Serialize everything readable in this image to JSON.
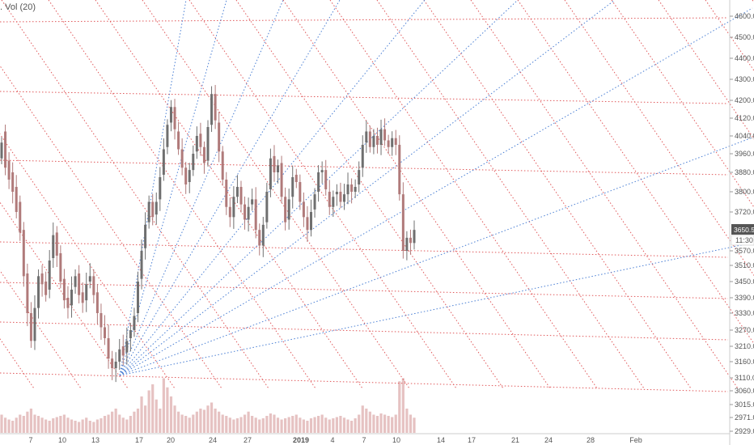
{
  "header": {
    "indicator_label": ". Vol (20)"
  },
  "colors": {
    "red_lines": "#e0585a",
    "blue_lines": "#4a7fd4",
    "candle_up": "#6f6f6f",
    "candle_down": "#b07a7a",
    "volume": "#e6c2c2",
    "axis_text": "#555555",
    "badge_bg": "#555555",
    "badge_fg": "#ffffff"
  },
  "chart_data": {
    "type": "candlestick",
    "title": "",
    "xlabel": "",
    "ylabel": "",
    "ylim": [
      2929,
      4650
    ],
    "y_ticks": [
      "4600.0",
      "4500.0",
      "4400.0",
      "4300.0",
      "4200.0",
      "4120.0",
      "4040.0",
      "3960.0",
      "3880.0",
      "3800.0",
      "3720.0",
      "3650.5",
      "3570.0",
      "3510.0",
      "3450.0",
      "3390.0",
      "3330.0",
      "3270.0",
      "3210.0",
      "3160.0",
      "3110.0",
      "3060.0",
      "3015.0",
      "2971.0",
      "2929.0"
    ],
    "x_ticks": [
      "7",
      "10",
      "13",
      "17",
      "20",
      "24",
      "27",
      "2019",
      "4",
      "7",
      "10",
      "14",
      "17",
      "21",
      "24",
      "28",
      "Feb"
    ],
    "last_price": "3650.5",
    "countdown": "11:30",
    "price_path": [
      [
        3940,
        4010
      ],
      [
        4060,
        3900
      ],
      [
        3930,
        3850
      ],
      [
        3880,
        3800
      ],
      [
        3820,
        3720
      ],
      [
        3760,
        3640
      ],
      [
        3650,
        3470
      ],
      [
        3480,
        3330
      ],
      [
        3330,
        3230
      ],
      [
        3230,
        3350
      ],
      [
        3350,
        3470
      ],
      [
        3480,
        3440
      ],
      [
        3450,
        3400
      ],
      [
        3420,
        3530
      ],
      [
        3540,
        3630
      ],
      [
        3640,
        3550
      ],
      [
        3560,
        3450
      ],
      [
        3460,
        3380
      ],
      [
        3390,
        3350
      ],
      [
        3360,
        3420
      ],
      [
        3430,
        3470
      ],
      [
        3480,
        3400
      ],
      [
        3410,
        3370
      ],
      [
        3380,
        3440
      ],
      [
        3450,
        3470
      ],
      [
        3470,
        3400
      ],
      [
        3410,
        3330
      ],
      [
        3330,
        3280
      ],
      [
        3280,
        3240
      ],
      [
        3240,
        3170
      ],
      [
        3170,
        3140
      ],
      [
        3140,
        3160
      ],
      [
        3160,
        3200
      ],
      [
        3210,
        3180
      ],
      [
        3190,
        3230
      ],
      [
        3240,
        3270
      ],
      [
        3270,
        3320
      ],
      [
        3330,
        3450
      ],
      [
        3460,
        3570
      ],
      [
        3580,
        3670
      ],
      [
        3680,
        3760
      ],
      [
        3760,
        3700
      ],
      [
        3710,
        3760
      ],
      [
        3770,
        3860
      ],
      [
        3870,
        3980
      ],
      [
        3990,
        4090
      ],
      [
        4100,
        4170
      ],
      [
        4170,
        4070
      ],
      [
        4060,
        3980
      ],
      [
        3980,
        3900
      ],
      [
        3900,
        3830
      ],
      [
        3840,
        3890
      ],
      [
        3890,
        3960
      ],
      [
        3970,
        4040
      ],
      [
        4050,
        3990
      ],
      [
        3990,
        3920
      ],
      [
        3930,
        4080
      ],
      [
        4090,
        4230
      ],
      [
        4230,
        4110
      ],
      [
        4100,
        3970
      ],
      [
        3970,
        3850
      ],
      [
        3850,
        3740
      ],
      [
        3740,
        3700
      ],
      [
        3700,
        3780
      ],
      [
        3780,
        3820
      ],
      [
        3820,
        3750
      ],
      [
        3750,
        3690
      ],
      [
        3690,
        3740
      ],
      [
        3750,
        3770
      ],
      [
        3770,
        3650
      ],
      [
        3650,
        3590
      ],
      [
        3590,
        3670
      ],
      [
        3680,
        3800
      ],
      [
        3810,
        3940
      ],
      [
        3950,
        3880
      ],
      [
        3880,
        3910
      ],
      [
        3920,
        3780
      ],
      [
        3780,
        3680
      ],
      [
        3690,
        3770
      ],
      [
        3780,
        3860
      ],
      [
        3870,
        3840
      ],
      [
        3840,
        3760
      ],
      [
        3760,
        3700
      ],
      [
        3700,
        3650
      ],
      [
        3650,
        3720
      ],
      [
        3730,
        3790
      ],
      [
        3800,
        3880
      ],
      [
        3880,
        3890
      ],
      [
        3890,
        3810
      ],
      [
        3800,
        3740
      ],
      [
        3740,
        3780
      ],
      [
        3790,
        3800
      ],
      [
        3800,
        3760
      ],
      [
        3760,
        3790
      ],
      [
        3790,
        3830
      ],
      [
        3830,
        3800
      ],
      [
        3800,
        3820
      ],
      [
        3830,
        3890
      ],
      [
        3900,
        4000
      ],
      [
        4010,
        4060
      ],
      [
        4060,
        3990
      ],
      [
        3990,
        4040
      ],
      [
        4040,
        4000
      ],
      [
        4000,
        4070
      ],
      [
        4070,
        4020
      ],
      [
        4020,
        3990
      ],
      [
        3990,
        4030
      ],
      [
        4030,
        4000
      ],
      [
        4000,
        3790
      ],
      [
        3790,
        3570
      ],
      [
        3570,
        3620
      ],
      [
        3620,
        3600
      ],
      [
        3600,
        3650
      ]
    ],
    "volume": [
      30,
      25,
      22,
      20,
      25,
      30,
      28,
      35,
      40,
      30,
      28,
      25,
      22,
      20,
      24,
      26,
      28,
      30,
      25,
      22,
      20,
      18,
      22,
      25,
      20,
      18,
      22,
      24,
      28,
      30,
      35,
      40,
      30,
      25,
      22,
      28,
      35,
      40,
      60,
      45,
      70,
      80,
      55,
      40,
      90,
      75,
      60,
      45,
      35,
      30,
      28,
      25,
      30,
      35,
      40,
      38,
      45,
      50,
      40,
      35,
      30,
      28,
      25,
      22,
      24,
      26,
      30,
      35,
      28,
      25,
      22,
      24,
      28,
      32,
      30,
      25,
      22,
      24,
      26,
      28,
      30,
      25,
      22,
      20,
      24,
      26,
      28,
      30,
      25,
      22,
      24,
      26,
      28,
      25,
      22,
      20,
      24,
      30,
      45,
      40,
      35,
      30,
      28,
      32,
      30,
      28,
      26,
      30,
      85,
      90,
      40,
      30,
      25
    ],
    "vlim": [
      0,
      100
    ]
  }
}
